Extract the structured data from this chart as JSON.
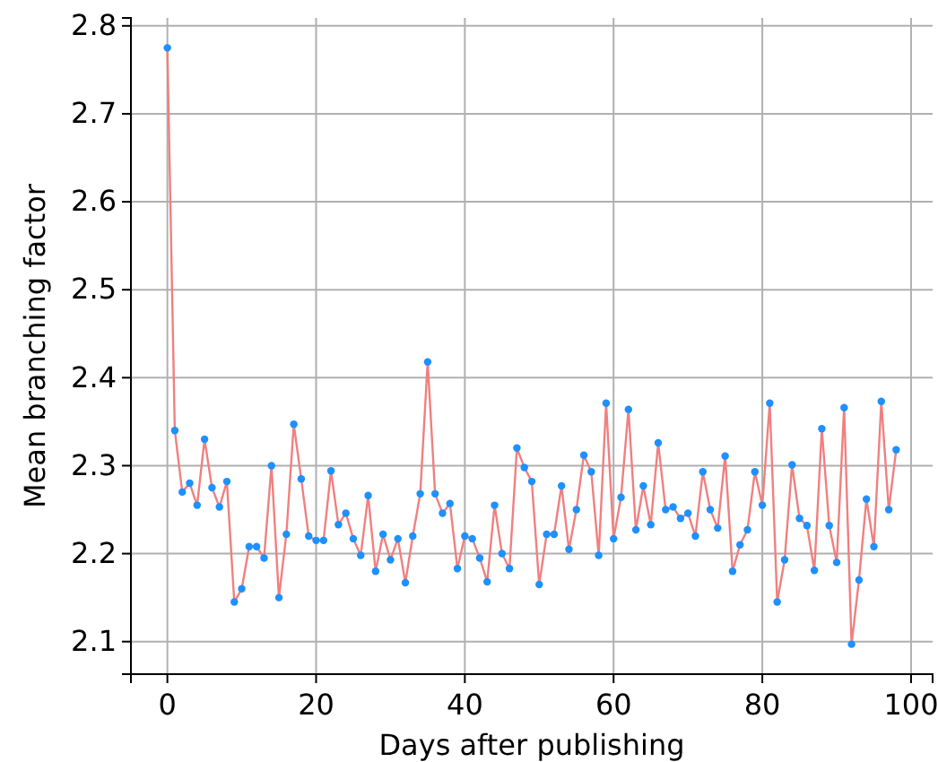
{
  "chart_data": {
    "type": "line",
    "xlabel": "Days after publishing",
    "ylabel": "Mean branching factor",
    "x": [
      0,
      1,
      2,
      3,
      4,
      5,
      6,
      7,
      8,
      9,
      10,
      11,
      12,
      13,
      14,
      15,
      16,
      17,
      18,
      19,
      20,
      21,
      22,
      23,
      24,
      25,
      26,
      27,
      28,
      29,
      30,
      31,
      32,
      33,
      34,
      35,
      36,
      37,
      38,
      39,
      40,
      41,
      42,
      43,
      44,
      45,
      46,
      47,
      48,
      49,
      50,
      51,
      52,
      53,
      54,
      55,
      56,
      57,
      58,
      59,
      60,
      61,
      62,
      63,
      64,
      65,
      66,
      67,
      68,
      69,
      70,
      71,
      72,
      73,
      74,
      75,
      76,
      77,
      78,
      79,
      80,
      81,
      82,
      83,
      84,
      85,
      86,
      87,
      88,
      89,
      90,
      91,
      92,
      93,
      94,
      95,
      96,
      97,
      98
    ],
    "series": [
      {
        "color": "#f08080",
        "marker": "none",
        "values": [
          2.775,
          2.34,
          2.27,
          2.28,
          2.255,
          2.33,
          2.275,
          2.253,
          2.282,
          2.145,
          2.16,
          2.208,
          2.208,
          2.195,
          2.3,
          2.15,
          2.222,
          2.347,
          2.285,
          2.22,
          2.215,
          2.215,
          2.294,
          2.233,
          2.246,
          2.217,
          2.198,
          2.266,
          2.18,
          2.222,
          2.193,
          2.217,
          2.167,
          2.22,
          2.268,
          2.418,
          2.268,
          2.246,
          2.257,
          2.183,
          2.22,
          2.217,
          2.195,
          2.168,
          2.255,
          2.2,
          2.183,
          2.32,
          2.298,
          2.282,
          2.165,
          2.222,
          2.222,
          2.277,
          2.205,
          2.25,
          2.312,
          2.293,
          2.198,
          2.371,
          2.217,
          2.264,
          2.364,
          2.227,
          2.277,
          2.233,
          2.326,
          2.25,
          2.253,
          2.24,
          2.246,
          2.22,
          2.293,
          2.25,
          2.229,
          2.311,
          2.18,
          2.21,
          2.227,
          2.293,
          2.255,
          2.371,
          2.145,
          2.193,
          2.301,
          2.24,
          2.232,
          2.181,
          2.342,
          2.232,
          2.19,
          2.366,
          2.097,
          2.17,
          2.262,
          2.208,
          2.373,
          2.25,
          2.318
        ]
      },
      {
        "type": "scatter",
        "marker": "circle",
        "color": "#1e90ff",
        "values": [
          2.775,
          2.34,
          2.27,
          2.28,
          2.255,
          2.33,
          2.275,
          2.253,
          2.282,
          2.145,
          2.16,
          2.208,
          2.208,
          2.195,
          2.3,
          2.15,
          2.222,
          2.347,
          2.285,
          2.22,
          2.215,
          2.215,
          2.294,
          2.233,
          2.246,
          2.217,
          2.198,
          2.266,
          2.18,
          2.222,
          2.193,
          2.217,
          2.167,
          2.22,
          2.268,
          2.418,
          2.268,
          2.246,
          2.257,
          2.183,
          2.22,
          2.217,
          2.195,
          2.168,
          2.255,
          2.2,
          2.183,
          2.32,
          2.298,
          2.282,
          2.165,
          2.222,
          2.222,
          2.277,
          2.205,
          2.25,
          2.312,
          2.293,
          2.198,
          2.371,
          2.217,
          2.264,
          2.364,
          2.227,
          2.277,
          2.233,
          2.326,
          2.25,
          2.253,
          2.24,
          2.246,
          2.22,
          2.293,
          2.25,
          2.229,
          2.311,
          2.18,
          2.21,
          2.227,
          2.293,
          2.255,
          2.371,
          2.145,
          2.193,
          2.301,
          2.24,
          2.232,
          2.181,
          2.342,
          2.232,
          2.19,
          2.366,
          2.097,
          2.17,
          2.262,
          2.208,
          2.373,
          2.25,
          2.318
        ]
      }
    ],
    "xlim": [
      -4.9,
      102.9
    ],
    "ylim": [
      2.063,
      2.809
    ],
    "xticks": [
      0,
      20,
      40,
      60,
      80,
      100
    ],
    "yticks": [
      {
        "value": 2.1,
        "label": "2.1"
      },
      {
        "value": 2.2,
        "label": "2.2"
      },
      {
        "value": 2.3,
        "label": "2.3"
      },
      {
        "value": 2.4,
        "label": "2.4"
      },
      {
        "value": 2.5,
        "label": "2.5"
      },
      {
        "value": 2.6,
        "label": "2.6"
      },
      {
        "value": 2.7,
        "label": "2.7"
      },
      {
        "value": 2.8,
        "label": "2.8"
      }
    ],
    "grid": true,
    "line_style": "solid"
  }
}
